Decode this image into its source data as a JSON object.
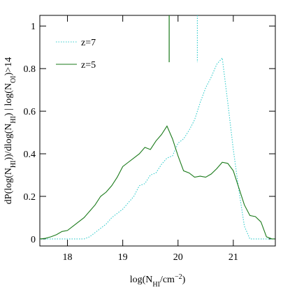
{
  "chart_data": {
    "type": "line",
    "xlabel": [
      {
        "text": "log(N"
      },
      {
        "text": "HI",
        "sub": true
      },
      {
        "text": "/cm"
      },
      {
        "text": "−2",
        "sup": true
      },
      {
        "text": ")"
      }
    ],
    "ylabel": [
      {
        "text": "dP(log(N"
      },
      {
        "text": "HI",
        "sub": true
      },
      {
        "text": "))/dlog(N"
      },
      {
        "text": "HI",
        "sub": true
      },
      {
        "text": ")  |  log(N"
      },
      {
        "text": "OI",
        "sub": true
      },
      {
        "text": ")>14"
      }
    ],
    "xlim": [
      17.5,
      21.76
    ],
    "ylim": [
      -0.033,
      1.05
    ],
    "xticks": [
      18,
      19,
      20,
      21
    ],
    "yticks": [
      0,
      0.2,
      0.4,
      0.6,
      0.8,
      1
    ],
    "series": [
      {
        "name": "z=7",
        "color": "#33cccc",
        "dash": "dotted",
        "x": [
          17.5,
          18.3,
          18.4,
          18.5,
          18.6,
          18.7,
          18.8,
          18.9,
          19.0,
          19.1,
          19.2,
          19.3,
          19.4,
          19.5,
          19.6,
          19.7,
          19.8,
          19.9,
          20.0,
          20.1,
          20.2,
          20.3,
          20.4,
          20.5,
          20.6,
          20.7,
          20.8,
          20.9,
          21.0,
          21.1,
          21.2,
          21.3,
          21.75
        ],
        "values": [
          0,
          0,
          0.01,
          0.03,
          0.05,
          0.07,
          0.1,
          0.12,
          0.14,
          0.17,
          0.2,
          0.25,
          0.26,
          0.3,
          0.31,
          0.35,
          0.38,
          0.39,
          0.45,
          0.47,
          0.51,
          0.56,
          0.64,
          0.71,
          0.76,
          0.82,
          0.85,
          0.64,
          0.42,
          0.23,
          0.06,
          0,
          0
        ]
      },
      {
        "name": "z=5",
        "color": "#1a7a1a",
        "dash": "solid",
        "x": [
          17.5,
          17.6,
          17.7,
          17.8,
          17.9,
          18.0,
          18.1,
          18.2,
          18.3,
          18.4,
          18.5,
          18.6,
          18.7,
          18.8,
          18.9,
          19.0,
          19.1,
          19.2,
          19.3,
          19.4,
          19.5,
          19.6,
          19.7,
          19.8,
          19.9,
          20.0,
          20.1,
          20.2,
          20.3,
          20.4,
          20.5,
          20.6,
          20.7,
          20.8,
          20.9,
          21.0,
          21.1,
          21.2,
          21.3,
          21.4,
          21.5,
          21.6,
          21.7,
          21.75
        ],
        "values": [
          0,
          0.003,
          0.01,
          0.02,
          0.035,
          0.04,
          0.06,
          0.08,
          0.1,
          0.13,
          0.16,
          0.2,
          0.22,
          0.25,
          0.29,
          0.34,
          0.36,
          0.38,
          0.4,
          0.43,
          0.42,
          0.46,
          0.49,
          0.53,
          0.47,
          0.39,
          0.32,
          0.31,
          0.29,
          0.295,
          0.29,
          0.305,
          0.33,
          0.36,
          0.355,
          0.32,
          0.24,
          0.16,
          0.11,
          0.105,
          0.08,
          0.01,
          0,
          0
        ]
      }
    ],
    "markers": [
      {
        "x": 19.84,
        "y_end": 0.83,
        "color": "#1a7a1a",
        "dash": "solid"
      },
      {
        "x": 20.35,
        "y_end": 0.83,
        "color": "#33cccc",
        "dash": "dotted"
      }
    ]
  }
}
